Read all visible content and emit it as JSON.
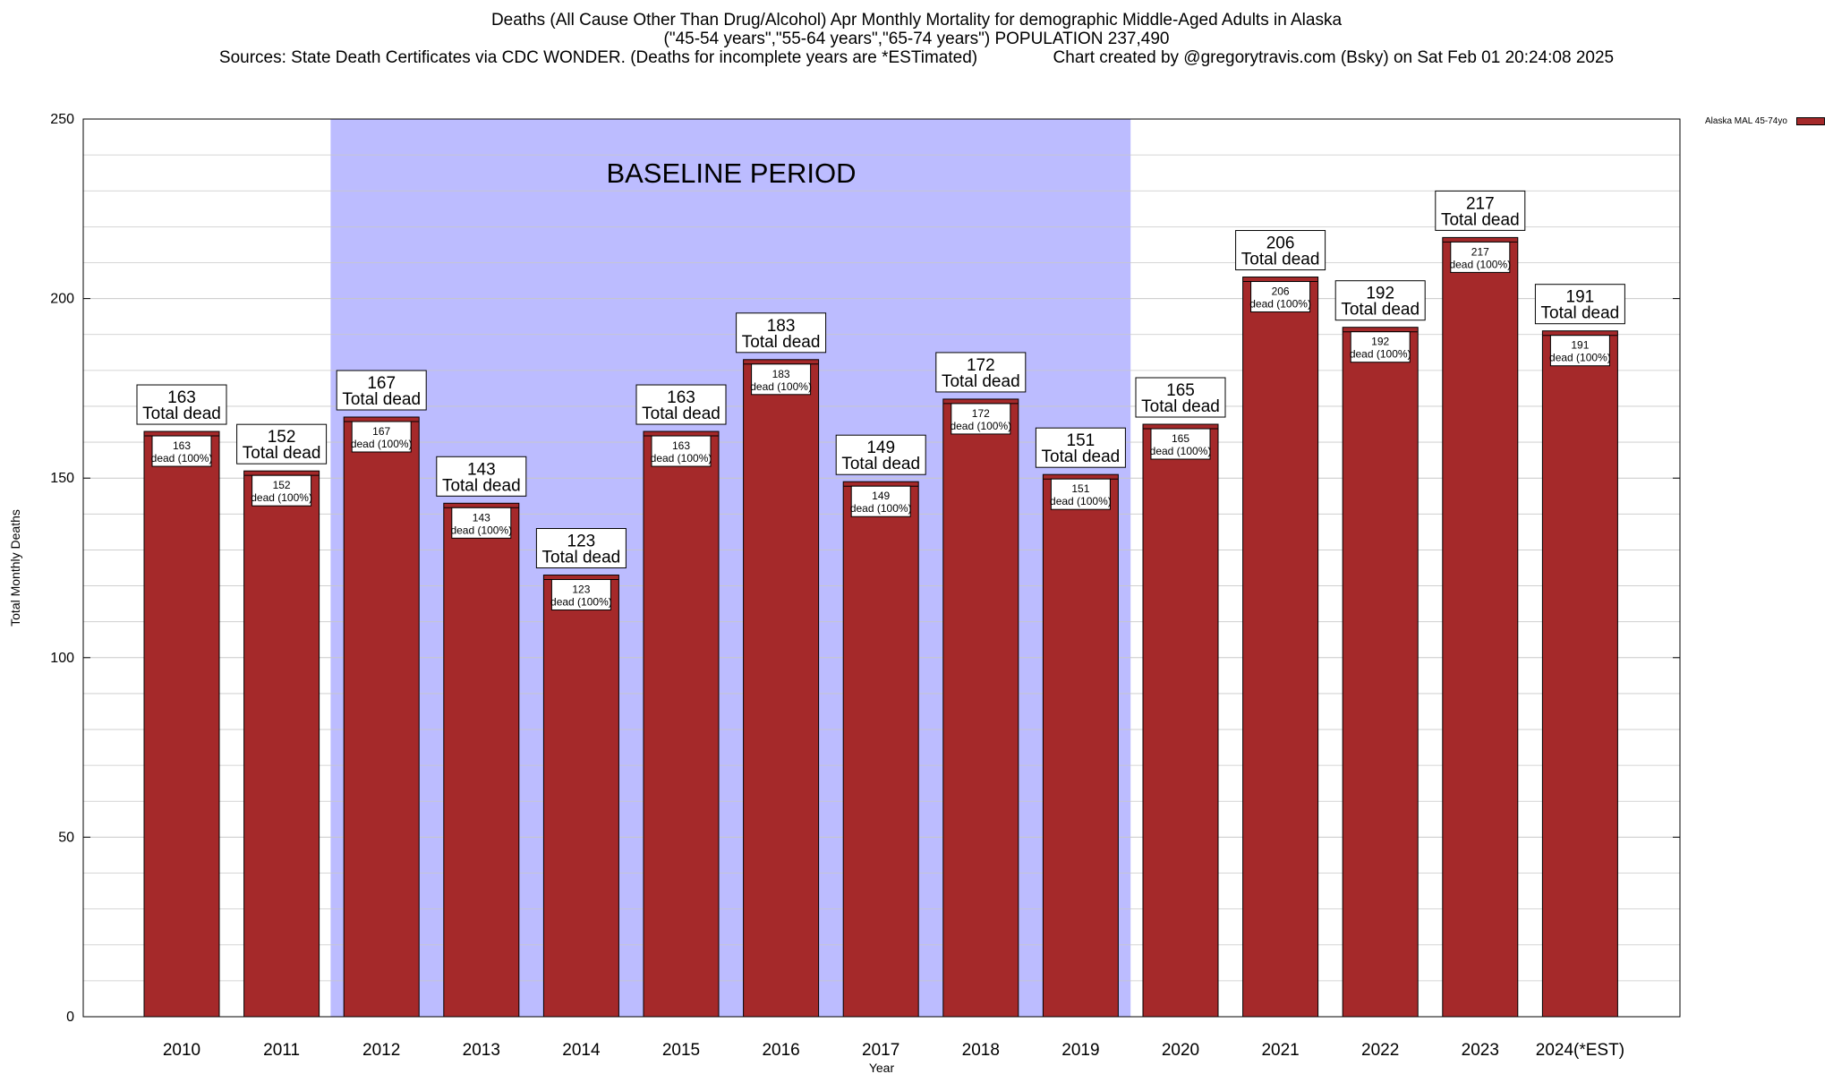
{
  "title_lines": [
    "Deaths (All Cause Other Than Drug/Alcohol) Apr Monthly Mortality for demographic Middle-Aged Adults in Alaska",
    "(\"45-54 years\",\"55-64 years\",\"65-74 years\") POPULATION 237,490",
    "Sources: State Death Certificates via CDC WONDER. (Deaths for incomplete years are *ESTimated)                Chart created by @gregorytravis.com (Bsky) on Sat Feb 01 20:24:08 2025"
  ],
  "legend": {
    "label": "Alaska MAL 45-74yo"
  },
  "colors": {
    "bar": "#a5292a",
    "baseline_band": "#bcbcff",
    "grid": "#c8c8c8"
  },
  "chart_data": {
    "type": "bar",
    "categories": [
      "2010",
      "2011",
      "2012",
      "2013",
      "2014",
      "2015",
      "2016",
      "2017",
      "2018",
      "2019",
      "2020",
      "2021",
      "2022",
      "2023",
      "2024(*EST)"
    ],
    "series": [
      {
        "name": "Alaska MAL 45-74yo",
        "values": [
          163,
          152,
          167,
          143,
          123,
          163,
          183,
          149,
          172,
          151,
          165,
          206,
          192,
          217,
          191
        ]
      }
    ],
    "xlabel": "Year",
    "ylabel": "Total Monthly Deaths",
    "ylim": [
      0,
      250
    ],
    "yticks": [
      0,
      50,
      100,
      150,
      200,
      250
    ],
    "grid": true,
    "legend_position": "top-right",
    "annotations": {
      "baseline_label": "BASELINE PERIOD",
      "baseline_range": [
        "2012",
        "2019"
      ],
      "top_label_suffix": "Total dead",
      "inner_label_suffix": "dead (100%)"
    }
  }
}
